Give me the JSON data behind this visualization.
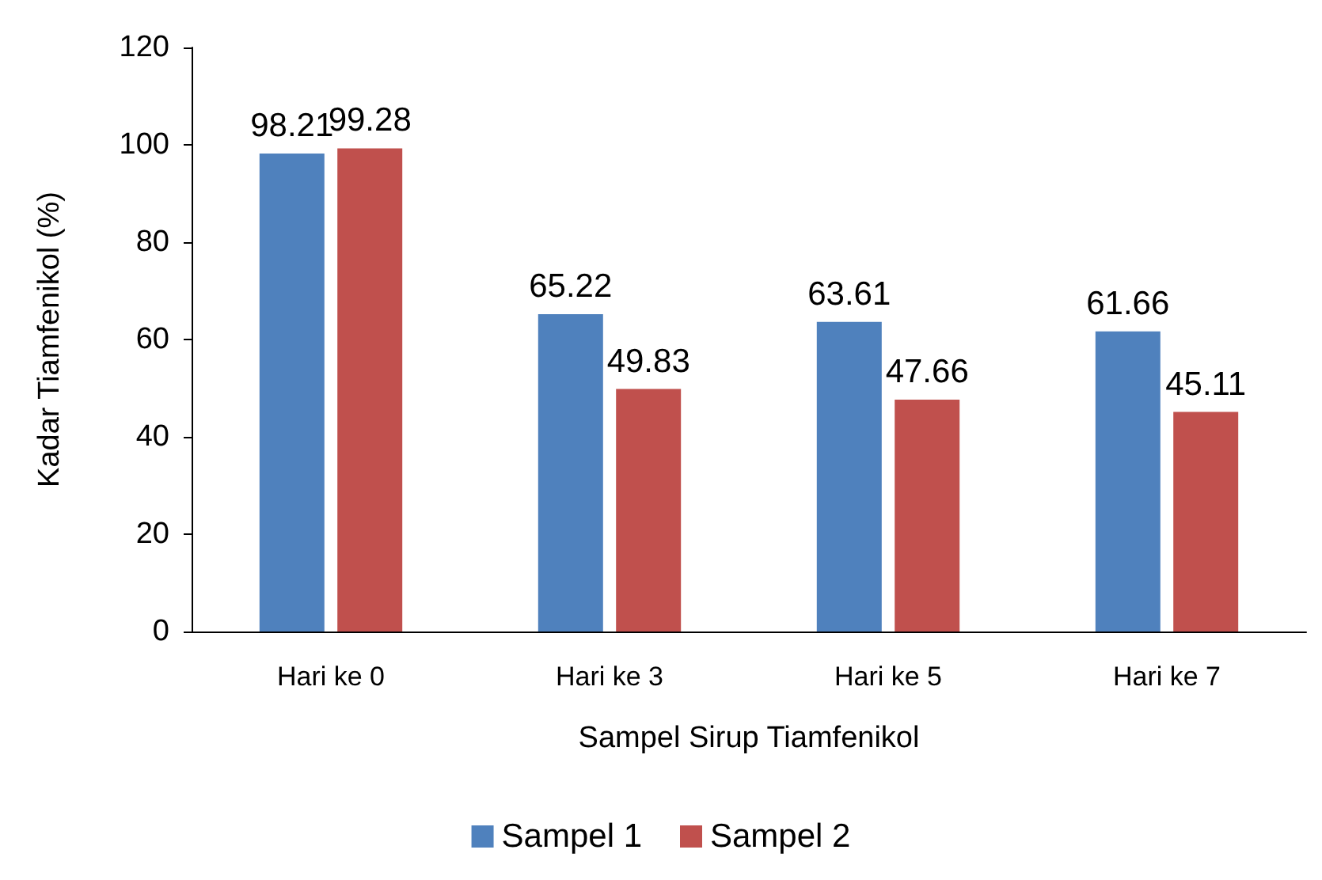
{
  "chart_data": {
    "type": "bar",
    "xlabel": "Sampel Sirup Tiamfenikol",
    "ylabel": "Kadar Tiamfenikol (%)",
    "categories": [
      "Hari ke 0",
      "Hari ke 3",
      "Hari ke 5",
      "Hari ke 7"
    ],
    "series": [
      {
        "name": "Sampel 1",
        "color": "#4f81bd",
        "values": [
          98.21,
          65.22,
          63.61,
          61.66
        ]
      },
      {
        "name": "Sampel 2",
        "color": "#c0504d",
        "values": [
          99.28,
          49.83,
          47.66,
          45.11
        ]
      }
    ],
    "ylim": [
      0,
      120
    ],
    "yticks": [
      0,
      20,
      40,
      60,
      80,
      100,
      120
    ],
    "grid": false,
    "legend": "bottom",
    "data_labels": true
  }
}
